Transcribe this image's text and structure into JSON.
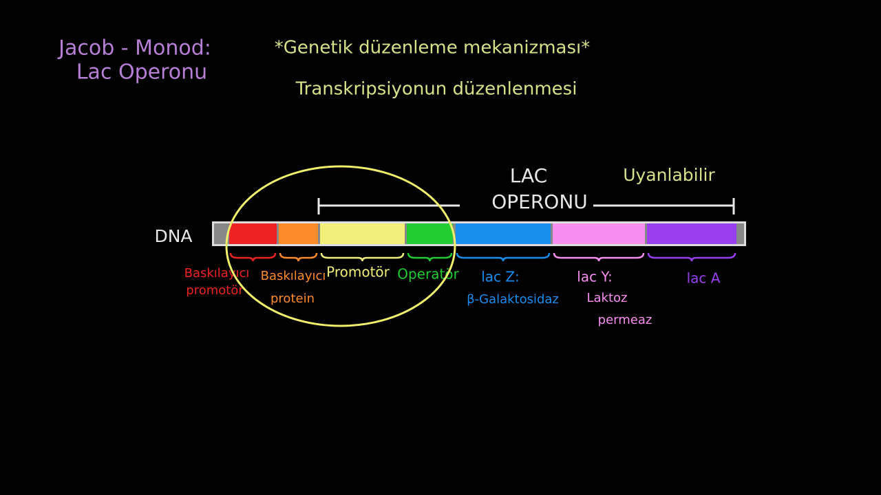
{
  "title": {
    "line1": "Jacob - Monod:",
    "line2": "Lac Operonu"
  },
  "header": {
    "line1": "*Genetik düzenleme mekanizması*",
    "line2": "Transkripsiyonun düzenlenmesi"
  },
  "operon": {
    "line1": "LAC",
    "line2": "OPERONU",
    "note": "Uyanlabilir"
  },
  "dna_label": "DNA",
  "segments": [
    {
      "color": "#ee2222",
      "labels": [
        "Baskılayıcı",
        "promotör"
      ]
    },
    {
      "color": "#ff8c2a",
      "labels": [
        "Baskılayıcı",
        "protein"
      ]
    },
    {
      "color": "#f2ef7a",
      "labels": [
        "Promotör"
      ]
    },
    {
      "color": "#22cc33",
      "labels": [
        "Operatör"
      ]
    },
    {
      "color": "#1a8ef0",
      "labels": [
        "lac Z:",
        "β-Galaktosidaz"
      ]
    },
    {
      "color": "#f78ef0",
      "labels": [
        "lac Y:",
        "Laktoz",
        "permeaz"
      ]
    },
    {
      "color": "#9a3ff0",
      "labels": [
        "lac A"
      ]
    }
  ]
}
